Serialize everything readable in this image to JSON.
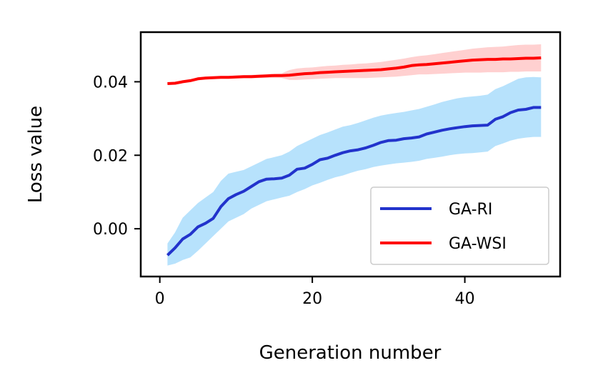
{
  "chart_data": {
    "type": "line",
    "xlabel": "Generation number",
    "ylabel": "Loss value",
    "xlim": [
      -2.5,
      52.5
    ],
    "ylim": [
      -0.013,
      0.0535
    ],
    "xticks": [
      0,
      20,
      40
    ],
    "xtick_labels": [
      "0",
      "20",
      "40"
    ],
    "yticks": [
      0.0,
      0.02,
      0.04
    ],
    "ytick_labels": [
      "0.00",
      "0.02",
      "0.04"
    ],
    "legend_position": "lower-right",
    "x": [
      1,
      2,
      3,
      4,
      5,
      6,
      7,
      8,
      9,
      10,
      11,
      12,
      13,
      14,
      15,
      16,
      17,
      18,
      19,
      20,
      21,
      22,
      23,
      24,
      25,
      26,
      27,
      28,
      29,
      30,
      31,
      32,
      33,
      34,
      35,
      36,
      37,
      38,
      39,
      40,
      41,
      42,
      43,
      44,
      45,
      46,
      47,
      48,
      49,
      50
    ],
    "series": [
      {
        "name": "GA-RI",
        "color": "#2233cc",
        "band_color": "#87cefa",
        "values": [
          -0.0072,
          -0.0052,
          -0.0028,
          -0.0015,
          0.0005,
          0.0015,
          0.0028,
          0.006,
          0.0082,
          0.0093,
          0.0102,
          0.0115,
          0.0128,
          0.0135,
          0.0136,
          0.0138,
          0.0146,
          0.0162,
          0.0165,
          0.0175,
          0.0188,
          0.0192,
          0.02,
          0.0207,
          0.0212,
          0.0215,
          0.022,
          0.0227,
          0.0235,
          0.024,
          0.0241,
          0.0245,
          0.0247,
          0.025,
          0.0258,
          0.0263,
          0.0268,
          0.0272,
          0.0275,
          0.0278,
          0.028,
          0.0281,
          0.0282,
          0.0298,
          0.0305,
          0.0316,
          0.0323,
          0.0325,
          0.033,
          0.033
        ],
        "lower": [
          -0.01,
          -0.0095,
          -0.0085,
          -0.0078,
          -0.006,
          -0.004,
          -0.002,
          0.0,
          0.002,
          0.003,
          0.004,
          0.0055,
          0.0065,
          0.0075,
          0.008,
          0.0085,
          0.009,
          0.01,
          0.0108,
          0.0118,
          0.0125,
          0.0133,
          0.014,
          0.0145,
          0.0152,
          0.0158,
          0.0162,
          0.0168,
          0.0172,
          0.0175,
          0.0178,
          0.018,
          0.0182,
          0.0185,
          0.019,
          0.0193,
          0.0196,
          0.02,
          0.0203,
          0.0205,
          0.0206,
          0.0208,
          0.021,
          0.0225,
          0.0232,
          0.024,
          0.0245,
          0.0248,
          0.025,
          0.025
        ],
        "upper": [
          -0.004,
          -0.001,
          0.003,
          0.005,
          0.007,
          0.0085,
          0.01,
          0.013,
          0.015,
          0.0155,
          0.016,
          0.017,
          0.018,
          0.019,
          0.0195,
          0.02,
          0.021,
          0.0225,
          0.0235,
          0.0245,
          0.0255,
          0.0262,
          0.027,
          0.0278,
          0.0282,
          0.0288,
          0.0295,
          0.0302,
          0.0308,
          0.0312,
          0.0315,
          0.0318,
          0.0322,
          0.0326,
          0.0332,
          0.0338,
          0.0345,
          0.035,
          0.0355,
          0.0358,
          0.036,
          0.0362,
          0.0365,
          0.038,
          0.0388,
          0.0398,
          0.0408,
          0.0412,
          0.0413,
          0.0412
        ]
      },
      {
        "name": "GA-WSI",
        "color": "#ff0000",
        "band_color": "#ffc8c8",
        "values": [
          0.0395,
          0.0396,
          0.04,
          0.0403,
          0.0408,
          0.041,
          0.0411,
          0.0412,
          0.0412,
          0.0413,
          0.0414,
          0.0414,
          0.0415,
          0.0416,
          0.0417,
          0.0417,
          0.0418,
          0.042,
          0.0422,
          0.0423,
          0.0425,
          0.0426,
          0.0427,
          0.0428,
          0.0429,
          0.043,
          0.0431,
          0.0432,
          0.0433,
          0.0435,
          0.0437,
          0.044,
          0.0444,
          0.0446,
          0.0447,
          0.0449,
          0.0451,
          0.0453,
          0.0455,
          0.0457,
          0.0459,
          0.046,
          0.0461,
          0.0461,
          0.0462,
          0.0462,
          0.0463,
          0.0464,
          0.0464,
          0.0465
        ],
        "lower": [
          0.0393,
          0.0394,
          0.0398,
          0.04,
          0.0404,
          0.0406,
          0.0407,
          0.0408,
          0.0408,
          0.0409,
          0.0409,
          0.0409,
          0.041,
          0.041,
          0.041,
          0.041,
          0.0405,
          0.0405,
          0.0406,
          0.0407,
          0.0408,
          0.0409,
          0.041,
          0.041,
          0.041,
          0.041,
          0.041,
          0.0411,
          0.0412,
          0.0413,
          0.0414,
          0.0416,
          0.0418,
          0.042,
          0.042,
          0.0421,
          0.0422,
          0.0423,
          0.0424,
          0.0425,
          0.0425,
          0.0425,
          0.0426,
          0.0426,
          0.0426,
          0.0427,
          0.0427,
          0.0428,
          0.0428,
          0.0428
        ],
        "upper": [
          0.0397,
          0.0398,
          0.0402,
          0.0406,
          0.0412,
          0.0414,
          0.0415,
          0.0416,
          0.0416,
          0.0417,
          0.0418,
          0.0419,
          0.042,
          0.0421,
          0.0422,
          0.0423,
          0.0432,
          0.0436,
          0.0438,
          0.0439,
          0.0441,
          0.0443,
          0.0444,
          0.0446,
          0.0447,
          0.0449,
          0.045,
          0.0452,
          0.0454,
          0.0457,
          0.046,
          0.0463,
          0.0467,
          0.047,
          0.0472,
          0.0475,
          0.0478,
          0.0481,
          0.0484,
          0.0487,
          0.049,
          0.0492,
          0.0494,
          0.0495,
          0.0496,
          0.0498,
          0.05,
          0.0501,
          0.0501,
          0.0502
        ]
      }
    ]
  }
}
